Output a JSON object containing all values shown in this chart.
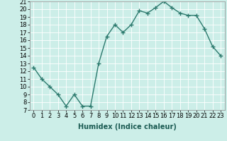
{
  "title": "",
  "xlabel": "Humidex (Indice chaleur)",
  "x": [
    0,
    1,
    2,
    3,
    4,
    5,
    6,
    7,
    8,
    9,
    10,
    11,
    12,
    13,
    14,
    15,
    16,
    17,
    18,
    19,
    20,
    21,
    22,
    23
  ],
  "y": [
    12.5,
    11.0,
    10.0,
    9.0,
    7.5,
    9.0,
    7.5,
    7.5,
    13.0,
    16.5,
    18.0,
    17.0,
    18.0,
    19.8,
    19.5,
    20.2,
    21.0,
    20.2,
    19.5,
    19.2,
    19.2,
    17.5,
    15.2,
    14.0
  ],
  "line_color": "#2d7a6e",
  "marker": "+",
  "markersize": 4,
  "linewidth": 1.0,
  "markeredgewidth": 1.0,
  "xlim": [
    -0.5,
    23.5
  ],
  "ylim": [
    7,
    21
  ],
  "yticks": [
    7,
    8,
    9,
    10,
    11,
    12,
    13,
    14,
    15,
    16,
    17,
    18,
    19,
    20,
    21
  ],
  "xticks": [
    0,
    1,
    2,
    3,
    4,
    5,
    6,
    7,
    8,
    9,
    10,
    11,
    12,
    13,
    14,
    15,
    16,
    17,
    18,
    19,
    20,
    21,
    22,
    23
  ],
  "bg_color": "#cceee8",
  "grid_color": "#ffffff",
  "grid_minor_color": "#e8f8f5",
  "axis_label_fontsize": 7,
  "tick_fontsize": 6,
  "xlabel_fontweight": "bold"
}
